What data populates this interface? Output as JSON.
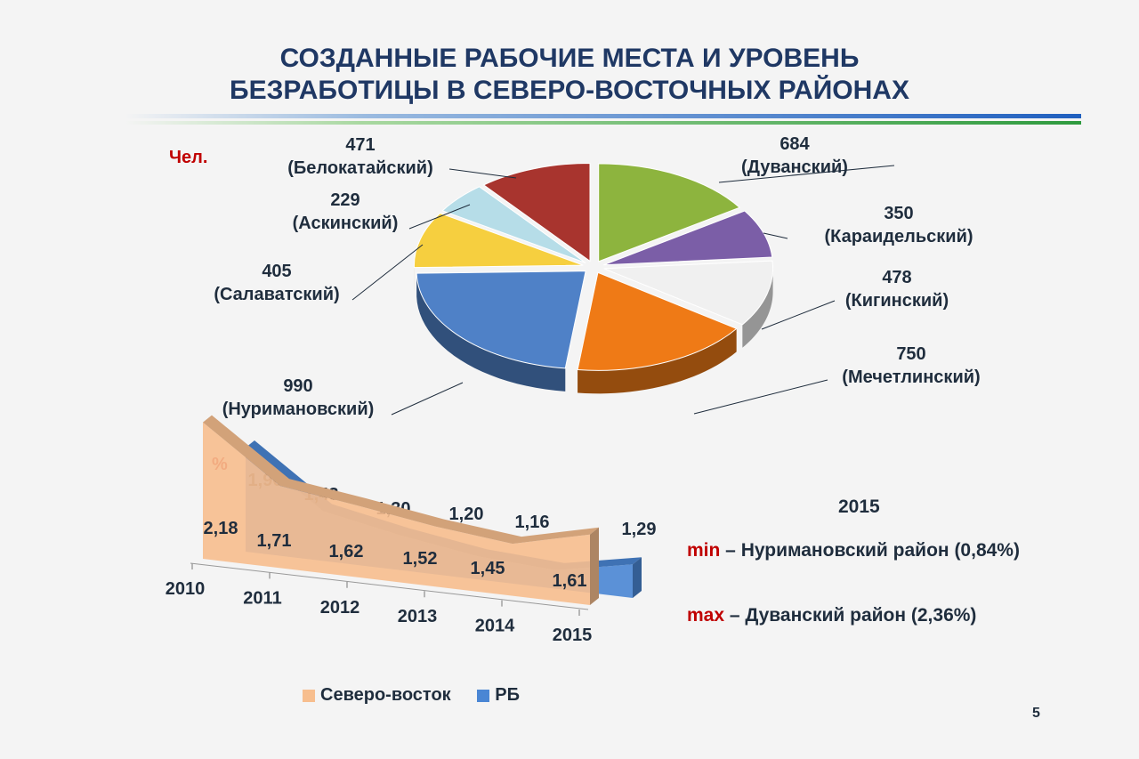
{
  "title_line1": "СОЗДАННЫЕ РАБОЧИЕ МЕСТА И УРОВЕНЬ",
  "title_line2": "БЕЗРАБОТИЦЫ В СЕВЕРО-ВОСТОЧНЫХ РАЙОНАХ",
  "page_number": "5",
  "chart_data": [
    {
      "type": "pie",
      "unit": "Чел.",
      "slices": [
        {
          "name": "(Дуванский)",
          "value": 684,
          "value_label": "684",
          "color": "#8db43e"
        },
        {
          "name": "(Караидельский)",
          "value": 350,
          "value_label": "350",
          "color": "#7b5ea7"
        },
        {
          "name": "(Кигинский)",
          "value": 478,
          "value_label": "478",
          "color": "#f0f0f0"
        },
        {
          "name": "(Мечетлинский)",
          "value": 750,
          "value_label": "750",
          "color": "#ef7a16"
        },
        {
          "name": "(Нуримановский)",
          "value": 990,
          "value_label": "990",
          "color": "#4f81c7"
        },
        {
          "name": "(Салаватский)",
          "value": 405,
          "value_label": "405",
          "color": "#f6cf3f"
        },
        {
          "name": "(Аскинский)",
          "value": 229,
          "value_label": "229",
          "color": "#b6dde8"
        },
        {
          "name": "(Белокатайский)",
          "value": 471,
          "value_label": "471",
          "color": "#a8342e"
        }
      ]
    },
    {
      "type": "area",
      "unit": "%",
      "categories": [
        "2010",
        "2011",
        "2012",
        "2013",
        "2014",
        "2015"
      ],
      "series": [
        {
          "name": "Северо-восток",
          "color": "#f7be8e",
          "values": [
            2.18,
            1.71,
            1.62,
            1.52,
            1.45,
            1.61
          ],
          "labels": [
            "2,18",
            "1,71",
            "1,62",
            "1,52",
            "1,45",
            "1,61"
          ]
        },
        {
          "name": "РБ",
          "color": "#4a86d4",
          "values": [
            1.9,
            1.43,
            1.3,
            1.2,
            1.16,
            1.29
          ],
          "labels": [
            "1,90",
            "1,43",
            "1,30",
            "1,20",
            "1,16",
            "1,29"
          ]
        }
      ],
      "legend_position": "bottom"
    }
  ],
  "info": {
    "year": "2015",
    "min_label": "min",
    "min_text": " – Нуримановский  район (0,84%)",
    "max_label": "max",
    "max_text": " – Дуванский район (2,36%)"
  }
}
